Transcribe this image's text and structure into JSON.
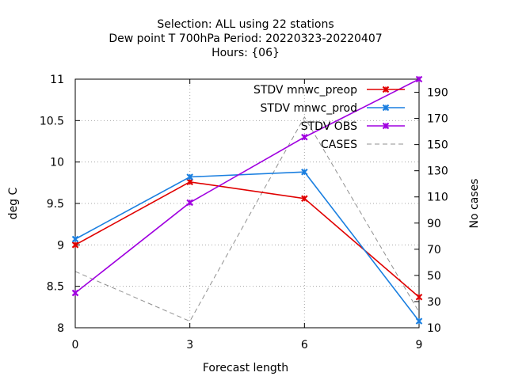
{
  "chart_data": {
    "type": "line",
    "title_lines": [
      "Selection: ALL using    22 stations",
      "Dew point T 700hPa   Period: 20220323-20220407",
      "Hours: {06}"
    ],
    "xlabel": "Forecast length",
    "ylabel": "deg C",
    "y2label": "No cases",
    "x": [
      0,
      3,
      6,
      9
    ],
    "xlim": [
      0,
      9
    ],
    "ylim": [
      8,
      11
    ],
    "y2lim": [
      10,
      200
    ],
    "xticks": [
      "0",
      "3",
      "6",
      "9"
    ],
    "yticks": [
      "8",
      "8.5",
      "9",
      "9.5",
      "10",
      "10.5",
      "11"
    ],
    "y2ticks": [
      "10",
      "30",
      "50",
      "70",
      "90",
      "110",
      "130",
      "150",
      "170",
      "190"
    ],
    "grid": true,
    "legend_position": "top-right",
    "series": [
      {
        "name": "STDV mnwc_preop",
        "axis": "y",
        "color": "#e00000",
        "marker": "x",
        "values": [
          9.0,
          9.76,
          9.56,
          8.37
        ]
      },
      {
        "name": "STDV mnwc_prod",
        "axis": "y",
        "color": "#1a7fe0",
        "marker": "x",
        "values": [
          9.07,
          9.82,
          9.88,
          8.08
        ]
      },
      {
        "name": "STDV OBS",
        "axis": "y",
        "color": "#a000e0",
        "marker": "x",
        "values": [
          8.42,
          9.51,
          10.3,
          11.0
        ]
      },
      {
        "name": "CASES",
        "axis": "y2",
        "color": "#909090",
        "dashed": true,
        "values": [
          53,
          15,
          171,
          22
        ]
      }
    ]
  }
}
